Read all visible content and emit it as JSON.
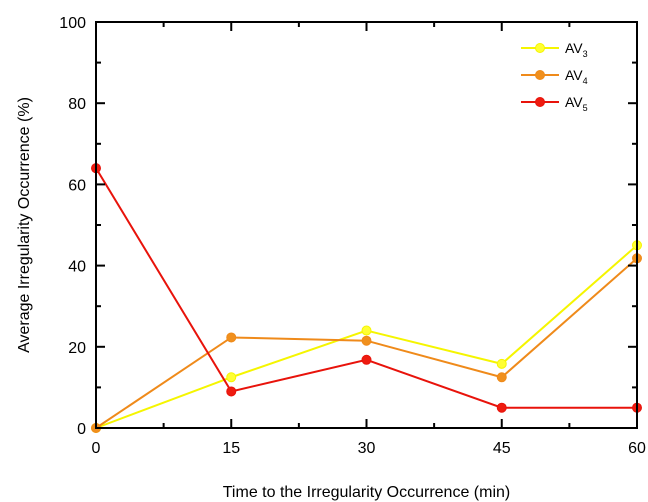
{
  "chart_data": {
    "type": "line",
    "x": [
      0,
      15,
      30,
      45,
      60
    ],
    "xlabel": "Time to the Irregularity Occurrence (min)",
    "ylabel": "Average Irregularity Occurrence (%)",
    "xlim": [
      0,
      60
    ],
    "ylim": [
      0,
      100
    ],
    "xticks": [
      "0",
      "15",
      "30",
      "45",
      "60"
    ],
    "yticks": [
      "0",
      "20",
      "40",
      "60",
      "80",
      "100"
    ],
    "grid": false,
    "legend_position": "top-right",
    "series": [
      {
        "name": "AV",
        "subscript": "3",
        "color": "#f5f500",
        "marker_color": "#ffff33",
        "values": [
          0,
          12.5,
          24,
          15.8,
          45
        ]
      },
      {
        "name": "AV",
        "subscript": "4",
        "color": "#ef8a1a",
        "marker_color": "#f0901e",
        "values": [
          0,
          22.3,
          21.5,
          12.5,
          41.8
        ]
      },
      {
        "name": "AV",
        "subscript": "5",
        "color": "#e8130b",
        "marker_color": "#ee1c10",
        "values": [
          64,
          9,
          16.8,
          5,
          5
        ]
      }
    ]
  }
}
